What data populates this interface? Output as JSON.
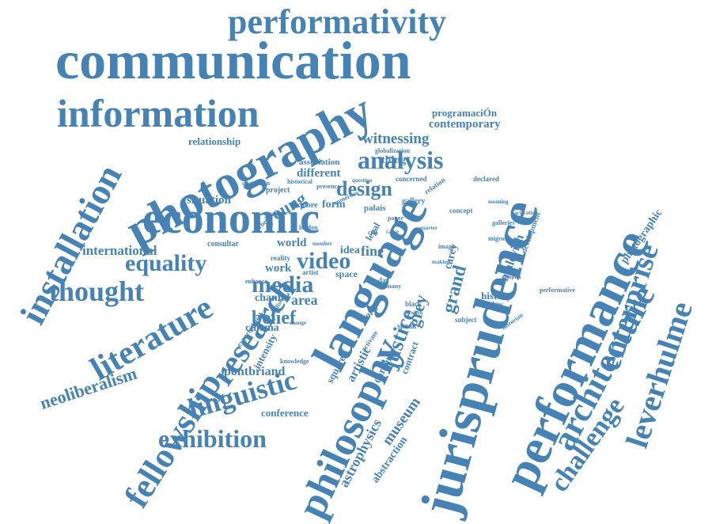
{
  "cloud": {
    "color": "#4682b4",
    "words": [
      "performativity",
      "communication",
      "information",
      "photography",
      "economic",
      "installation",
      "analysis",
      "design",
      "witnessing",
      "contemporary",
      "programaciÓn",
      "relationship",
      "association",
      "different",
      "young",
      "situation",
      "international",
      "equality",
      "thought",
      "literature",
      "research",
      "fellowship",
      "neoliberalism",
      "linguistic",
      "exhibition",
      "media",
      "video",
      "world",
      "work",
      "belief",
      "area",
      "cinema",
      "chantal",
      "intensity",
      "pontbriand",
      "conference",
      "language",
      "philosophy",
      "museum",
      "astrophysics",
      "abstraction",
      "justice",
      "grand",
      "grey",
      "jurisprudence",
      "performance",
      "architecture",
      "enterprise",
      "challenge",
      "leverhulme",
      "photographic",
      "malevich",
      "history",
      "development",
      "camera",
      "artistic",
      "square",
      "contract",
      "subject",
      "speak",
      "black",
      "concept",
      "galleries",
      "palais",
      "gallery",
      "form",
      "explore",
      "project",
      "institution",
      "historical",
      "concerned",
      "declared",
      "relation",
      "fine",
      "idea",
      "space",
      "reality",
      "artist",
      "knowledge",
      "enhance",
      "consultar",
      "performative",
      "window",
      "historian",
      "material",
      "complex",
      "activation",
      "globalization",
      "meaning",
      "thing",
      "legal",
      "day",
      "many",
      "numerous",
      "carey",
      "image",
      "migros",
      "london",
      "change",
      "presence",
      "question",
      "publisher",
      "paper",
      "quarter",
      "experimental",
      "rhetoric",
      "member",
      "cell",
      "word",
      "activate",
      "making",
      "artwork",
      "cause"
    ]
  }
}
